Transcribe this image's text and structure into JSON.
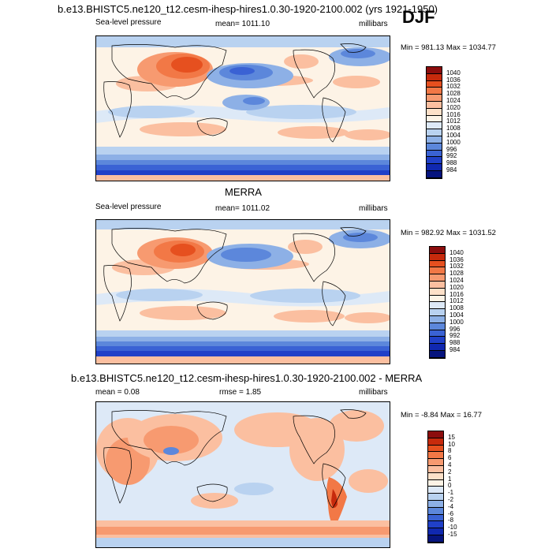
{
  "header": {
    "title": "b.e13.BHISTC5.ne120_t12.cesm-ihesp-hires1.0.30-1920-2100.002 (yrs 1921-1950)",
    "season": "DJF"
  },
  "panels": [
    {
      "variable": "Sea-level pressure",
      "mean_text": "mean= 1011.10",
      "units": "millibars",
      "minmax": "Min = 981.13 Max = 1034.77",
      "colorbar_labels": [
        "1040",
        "1036",
        "1032",
        "1028",
        "1024",
        "1020",
        "1016",
        "1012",
        "1008",
        "1004",
        "1000",
        "996",
        "992",
        "988",
        "984"
      ],
      "colorbar_colors": [
        "#8c0d0d",
        "#c72a0c",
        "#e6501f",
        "#f27846",
        "#f79a70",
        "#fbbfa0",
        "#fde0c8",
        "#fdf3e6",
        "#dde9f7",
        "#b9d2f0",
        "#8db0e6",
        "#5c87db",
        "#3a62d4",
        "#2040c8",
        "#1028b0",
        "#06147e"
      ]
    },
    {
      "title": "MERRA",
      "variable": "Sea-level pressure",
      "mean_text": "mean= 1011.02",
      "units": "millibars",
      "minmax": "Min = 982.92 Max = 1031.52",
      "colorbar_labels": [
        "1040",
        "1036",
        "1032",
        "1028",
        "1024",
        "1020",
        "1016",
        "1012",
        "1008",
        "1004",
        "1000",
        "996",
        "992",
        "988",
        "984"
      ],
      "colorbar_colors": [
        "#8c0d0d",
        "#c72a0c",
        "#e6501f",
        "#f27846",
        "#f79a70",
        "#fbbfa0",
        "#fde0c8",
        "#fdf3e6",
        "#dde9f7",
        "#b9d2f0",
        "#8db0e6",
        "#5c87db",
        "#3a62d4",
        "#2040c8",
        "#1028b0",
        "#06147e"
      ]
    },
    {
      "title": "b.e13.BHISTC5.ne120_t12.cesm-ihesp-hires1.0.30-1920-2100.002 - MERRA",
      "mean_text": "mean =   0.08",
      "rmse_text": "rmse =   1.85",
      "units": "millibars",
      "minmax": "Min =  -8.84 Max =  16.77",
      "colorbar_labels": [
        "15",
        "10",
        "8",
        "6",
        "4",
        "2",
        "1",
        "0",
        "-1",
        "-2",
        "-4",
        "-6",
        "-8",
        "-10",
        "-15"
      ],
      "colorbar_colors": [
        "#8c0d0d",
        "#c72a0c",
        "#e6501f",
        "#f27846",
        "#f79a70",
        "#fbbfa0",
        "#fde0c8",
        "#fdf3e6",
        "#dde9f7",
        "#b9d2f0",
        "#8db0e6",
        "#5c87db",
        "#3a62d4",
        "#2040c8",
        "#1028b0",
        "#06147e"
      ]
    }
  ]
}
